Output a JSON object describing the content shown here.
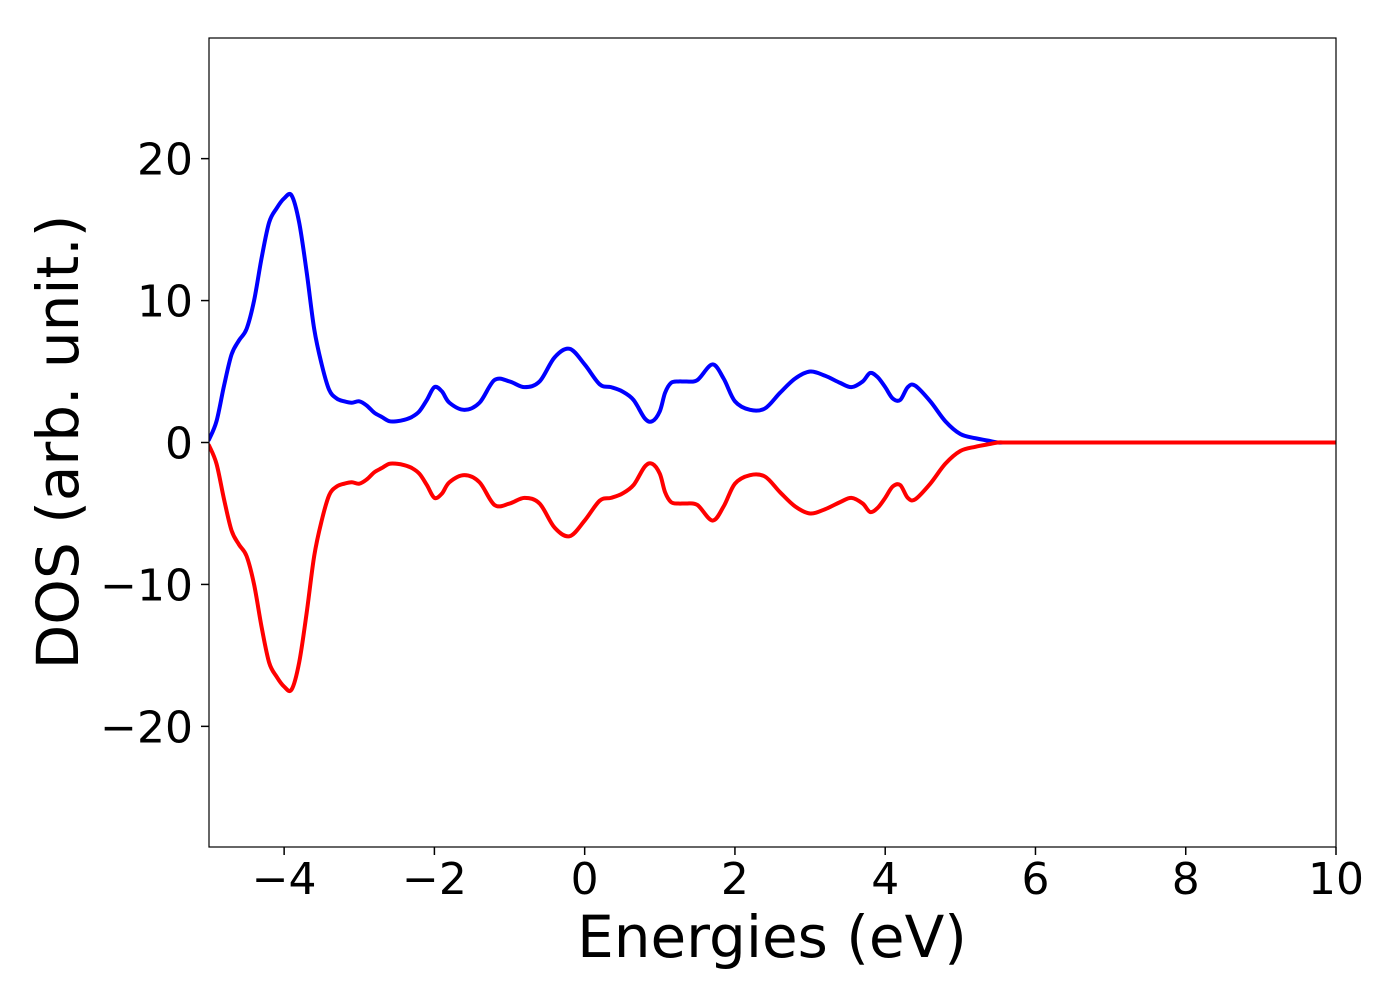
{
  "chart_data": {
    "type": "line",
    "title": "",
    "xlabel": "Energies (eV)",
    "ylabel": "DOS (arb. unit.)",
    "xlim": [
      -5,
      10
    ],
    "ylim": [
      -28.5,
      28.5
    ],
    "xticks": [
      -4,
      -2,
      0,
      2,
      4,
      6,
      8,
      10
    ],
    "xtick_labels": [
      "−4",
      "−2",
      "0",
      "2",
      "4",
      "6",
      "8",
      "10"
    ],
    "yticks": [
      -20,
      -10,
      0,
      10,
      20
    ],
    "ytick_labels": [
      "−20",
      "−10",
      "0",
      "10",
      "20"
    ],
    "grid": false,
    "legend": "none",
    "series": [
      {
        "color": "#0000ff",
        "x": [
          -5.0,
          -4.9,
          -4.8,
          -4.7,
          -4.6,
          -4.5,
          -4.4,
          -4.3,
          -4.2,
          -4.1,
          -4.0,
          -3.9,
          -3.8,
          -3.7,
          -3.6,
          -3.5,
          -3.4,
          -3.3,
          -3.2,
          -3.1,
          -3.0,
          -2.9,
          -2.8,
          -2.7,
          -2.6,
          -2.5,
          -2.4,
          -2.3,
          -2.2,
          -2.1,
          -2.0,
          -1.9,
          -1.8,
          -1.6,
          -1.4,
          -1.2,
          -1.0,
          -0.8,
          -0.6,
          -0.4,
          -0.2,
          0.0,
          0.2,
          0.35,
          0.5,
          0.65,
          0.8,
          0.9,
          1.0,
          1.07,
          1.15,
          1.25,
          1.35,
          1.5,
          1.7,
          1.85,
          2.0,
          2.2,
          2.4,
          2.6,
          2.8,
          3.0,
          3.2,
          3.4,
          3.55,
          3.7,
          3.8,
          3.9,
          4.0,
          4.1,
          4.2,
          4.3,
          4.4,
          4.6,
          4.8,
          5.0,
          5.2,
          5.4,
          5.5,
          5.6,
          5.7,
          5.8,
          6.0,
          6.15,
          6.3,
          6.5,
          6.65,
          6.8,
          6.9,
          7.0,
          7.2,
          7.4,
          7.6,
          7.8,
          8.0,
          8.3,
          9.0,
          10.0
        ],
        "y": [
          0.2,
          1.5,
          4.0,
          6.2,
          7.2,
          8.0,
          10.0,
          13.0,
          15.5,
          16.5,
          17.2,
          17.4,
          15.5,
          12.0,
          8.0,
          5.5,
          3.7,
          3.1,
          2.9,
          2.8,
          2.9,
          2.6,
          2.1,
          1.8,
          1.5,
          1.5,
          1.6,
          1.8,
          2.2,
          3.0,
          3.9,
          3.6,
          2.8,
          2.3,
          2.8,
          4.4,
          4.3,
          3.9,
          4.3,
          6.0,
          6.6,
          5.5,
          4.1,
          3.9,
          3.6,
          3.0,
          1.7,
          1.5,
          2.2,
          3.5,
          4.2,
          4.3,
          4.3,
          4.4,
          5.5,
          4.5,
          2.9,
          2.3,
          2.4,
          3.5,
          4.5,
          5.0,
          4.7,
          4.2,
          3.9,
          4.3,
          4.9,
          4.6,
          3.9,
          3.1,
          3.0,
          3.9,
          4.0,
          2.9,
          1.5,
          0.6,
          0.3,
          0.1,
          0.0,
          0.0,
          0.0,
          0.0,
          0.0,
          0.0,
          0.0,
          0.0,
          0.0,
          0.0,
          0.0,
          0.0,
          0.0,
          0.0,
          0.0,
          0.0,
          0.0,
          0.0,
          0.0,
          0.0
        ]
      },
      {
        "color": "#ff0000",
        "x": [
          -5.0,
          -4.9,
          -4.8,
          -4.7,
          -4.6,
          -4.5,
          -4.4,
          -4.3,
          -4.2,
          -4.1,
          -4.0,
          -3.9,
          -3.8,
          -3.7,
          -3.6,
          -3.5,
          -3.4,
          -3.3,
          -3.2,
          -3.1,
          -3.0,
          -2.9,
          -2.8,
          -2.7,
          -2.6,
          -2.5,
          -2.4,
          -2.3,
          -2.2,
          -2.1,
          -2.0,
          -1.9,
          -1.8,
          -1.6,
          -1.4,
          -1.2,
          -1.0,
          -0.8,
          -0.6,
          -0.4,
          -0.2,
          0.0,
          0.2,
          0.35,
          0.5,
          0.65,
          0.8,
          0.9,
          1.0,
          1.07,
          1.15,
          1.25,
          1.35,
          1.5,
          1.7,
          1.85,
          2.0,
          2.2,
          2.4,
          2.6,
          2.8,
          3.0,
          3.2,
          3.4,
          3.55,
          3.7,
          3.8,
          3.9,
          4.0,
          4.1,
          4.2,
          4.3,
          4.4,
          4.6,
          4.8,
          5.0,
          5.2,
          5.4,
          5.5,
          5.6,
          5.7,
          5.8,
          6.0,
          6.15,
          6.3,
          6.5,
          6.65,
          6.8,
          6.9,
          7.0,
          7.2,
          7.4,
          7.6,
          7.8,
          8.0,
          8.3,
          9.0,
          10.0
        ],
        "y": [
          -0.2,
          -1.5,
          -4.0,
          -6.2,
          -7.2,
          -8.0,
          -10.0,
          -13.0,
          -15.5,
          -16.5,
          -17.2,
          -17.4,
          -15.5,
          -12.0,
          -8.0,
          -5.5,
          -3.7,
          -3.1,
          -2.9,
          -2.8,
          -2.9,
          -2.6,
          -2.1,
          -1.8,
          -1.5,
          -1.5,
          -1.6,
          -1.8,
          -2.2,
          -3.0,
          -3.9,
          -3.6,
          -2.8,
          -2.3,
          -2.8,
          -4.4,
          -4.3,
          -3.9,
          -4.3,
          -6.0,
          -6.6,
          -5.5,
          -4.1,
          -3.9,
          -3.6,
          -3.0,
          -1.7,
          -1.5,
          -2.2,
          -3.5,
          -4.2,
          -4.3,
          -4.3,
          -4.4,
          -5.5,
          -4.5,
          -2.9,
          -2.3,
          -2.4,
          -3.5,
          -4.5,
          -5.0,
          -4.7,
          -4.2,
          -3.9,
          -4.3,
          -4.9,
          -4.6,
          -3.9,
          -3.1,
          -3.0,
          -3.9,
          -4.0,
          -2.9,
          -1.5,
          -0.6,
          -0.3,
          -0.1,
          -0.0,
          -0.0,
          -0.0,
          -0.0,
          -0.0,
          -0.0,
          -0.0,
          -0.0,
          -0.0,
          -0.0,
          -0.0,
          -0.0,
          -0.0,
          -0.0,
          -0.0,
          -0.0,
          -0.0,
          -0.0,
          -0.0,
          -0.0
        ]
      }
    ]
  }
}
